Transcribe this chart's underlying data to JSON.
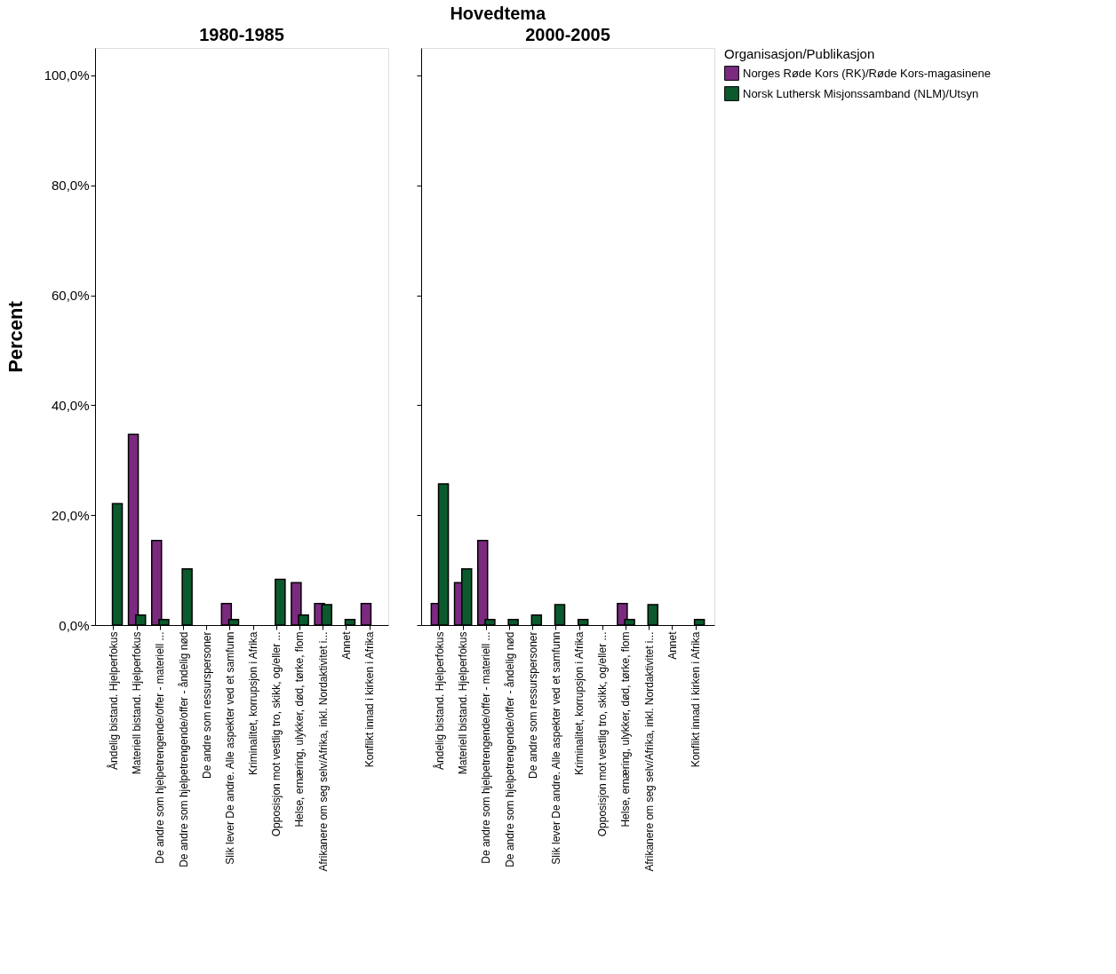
{
  "chart_data": [
    {
      "type": "bar",
      "title": "1980-1985",
      "annotations": [
        "Hovedtema"
      ],
      "ylabel": "Percent",
      "categories": [
        "Åndelig bistand. Hjelperfokus",
        "Materiell bistand. Hjelperfokus",
        "De andre som hjelpetrengende/offer - materiell ...",
        "De andre som hjelpetrengende/offer - åndelig nød",
        "De andre som ressurspersoner",
        "Slik lever De andre. Alle aspekter ved et samfunn",
        "Kriminalitet, korrupsjon i Afrika",
        "Opposisjon mot vestlig tro, skikk, og/eller ...",
        "Helse, ernæring, ulykker, død, tørke, flom",
        "Afrikanere om  seg selv/Afrika, inkl. Nordaktivitet i...",
        "Annet",
        "Konflikt innad i kirken i Afrika"
      ],
      "series": [
        {
          "name": "Norges Røde Kors (RK)/Røde Kors-magasinene",
          "color": "#7b2a80",
          "values": [
            null,
            34.7,
            15.4,
            null,
            null,
            3.9,
            null,
            null,
            7.7,
            3.9,
            null,
            3.9
          ]
        },
        {
          "name": "Norsk Luthersk Misjonssamband (NLM)/Utsyn",
          "color": "#0b5a2e",
          "values": [
            22.1,
            1.8,
            1.0,
            10.2,
            null,
            1.0,
            null,
            8.3,
            1.8,
            3.7,
            1.0,
            null
          ]
        }
      ],
      "ylim": [
        0,
        105
      ],
      "yticks": [
        {
          "value": 0,
          "label": "0,0%"
        },
        {
          "value": 20,
          "label": "20,0%"
        },
        {
          "value": 40,
          "label": "40,0%"
        },
        {
          "value": 60,
          "label": "60,0%"
        },
        {
          "value": 80,
          "label": "80,0%"
        },
        {
          "value": 100,
          "label": "100,0%"
        }
      ],
      "grid": false,
      "legend": "right"
    },
    {
      "type": "bar",
      "title": "2000-2005",
      "legend_title": "Organisasjon/Publikasjon",
      "categories": [
        "Åndelig bistand. Hjelperfokus",
        "Materiell bistand. Hjelperfokus",
        "De andre som hjelpetrengende/offer - materiell ...",
        "De andre som hjelpetrengende/offer - åndelig nød",
        "De andre som ressurspersoner",
        "Slik lever De andre. Alle aspekter ved et samfunn",
        "Kriminalitet, korrupsjon i Afrika",
        "Opposisjon mot vestlig tro, skikk, og/eller ...",
        "Helse, ernæring, ulykker, død, tørke, flom",
        "Afrikanere om  seg selv/Afrika, inkl. Nordaktivitet i...",
        "Annet",
        "Konflikt innad i kirken i Afrika"
      ],
      "series": [
        {
          "name": "Norges Røde Kors (RK)/Røde Kors-magasinene",
          "color": "#7b2a80",
          "values": [
            3.9,
            7.7,
            15.4,
            null,
            null,
            null,
            null,
            null,
            3.9,
            null,
            null,
            null
          ]
        },
        {
          "name": "Norsk Luthersk Misjonssamband (NLM)/Utsyn",
          "color": "#0b5a2e",
          "values": [
            25.7,
            10.2,
            1.0,
            1.0,
            1.8,
            3.7,
            1.0,
            null,
            1.0,
            3.7,
            null,
            1.0
          ]
        }
      ],
      "ylim": [
        0,
        105
      ],
      "yticks": [
        0,
        20,
        40,
        60,
        80,
        100
      ],
      "tick_labels": "x",
      "grid": false,
      "legend": "right"
    }
  ]
}
